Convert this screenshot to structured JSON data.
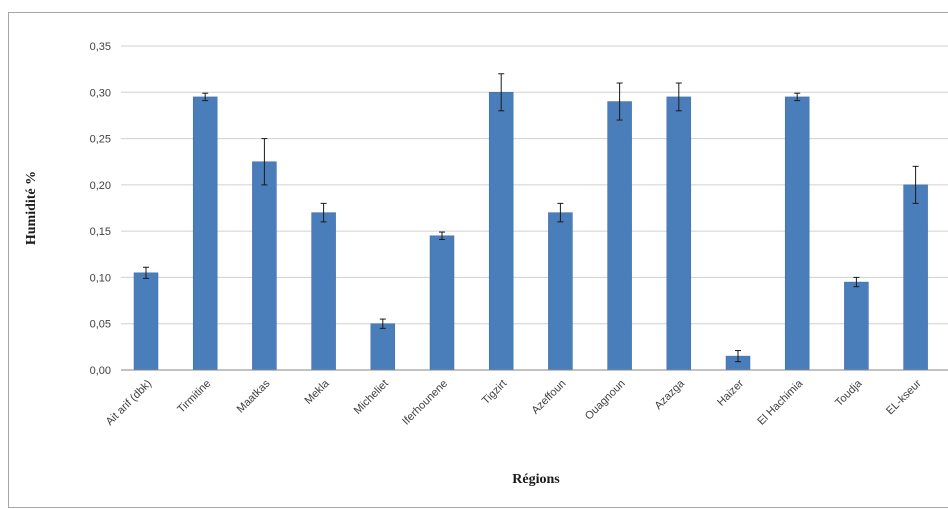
{
  "chart_data": {
    "type": "bar",
    "xlabel": "Régions",
    "ylabel": "Humidité %",
    "ylim": [
      0,
      0.35
    ],
    "yticks": [
      "0,00",
      "0,05",
      "0,10",
      "0,15",
      "0,20",
      "0,25",
      "0,30",
      "0,35"
    ],
    "grid": true,
    "legend": "none",
    "categories": [
      "Ait arif (dbk)",
      "Tirmitine",
      "Maatkas",
      "Mekla",
      "Micheliet",
      "Iferhounene",
      "Tigzirt",
      "Azeffoun",
      "Ouagnoun",
      "Azazga",
      "Haizer",
      "El Hachimia",
      "Toudja",
      "EL-kseur"
    ],
    "values": [
      0.105,
      0.295,
      0.225,
      0.17,
      0.05,
      0.145,
      0.3,
      0.17,
      0.29,
      0.295,
      0.015,
      0.295,
      0.095,
      0.2
    ],
    "errors": [
      0.006,
      0.004,
      0.025,
      0.01,
      0.005,
      0.004,
      0.02,
      0.01,
      0.02,
      0.015,
      0.006,
      0.004,
      0.005,
      0.02
    ],
    "colors": {
      "bar": "#4a7ebb",
      "bar_edge": "#3c6aa3",
      "grid": "#d0d0d0",
      "axis": "#868686",
      "error": "#1a1a1a"
    }
  }
}
